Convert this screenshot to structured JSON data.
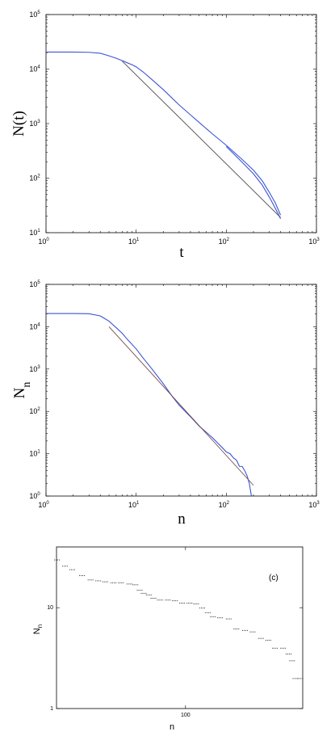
{
  "chart_data": [
    {
      "type": "line",
      "xlabel": "t",
      "ylabel": "N(t)",
      "xscale": "log",
      "yscale": "log",
      "xlim": [
        1,
        1000
      ],
      "ylim": [
        10,
        100000
      ],
      "x_ticks": [
        1,
        10,
        100,
        1000
      ],
      "y_ticks": [
        10,
        100,
        1000,
        10000,
        100000
      ],
      "series": [
        {
          "color": "#3a55d6",
          "x": [
            1,
            2,
            3,
            4,
            5,
            6,
            6.5,
            7,
            8,
            9,
            10,
            12,
            15,
            20,
            30,
            40,
            50,
            70,
            100,
            150,
            200,
            250,
            300,
            350,
            400
          ],
          "y": [
            20500,
            20500,
            20300,
            19500,
            17500,
            15800,
            15000,
            14300,
            13000,
            12000,
            11000,
            8800,
            6400,
            4200,
            2200,
            1450,
            1050,
            650,
            400,
            220,
            140,
            90,
            55,
            35,
            21
          ]
        },
        {
          "color": "#3a55d6",
          "x": [
            100,
            150,
            200,
            250,
            300,
            350,
            400
          ],
          "y": [
            380,
            195,
            120,
            75,
            45,
            28,
            18
          ]
        },
        {
          "color": "#4a4a4a",
          "x": [
            7,
            400
          ],
          "y": [
            14000,
            19
          ]
        }
      ]
    },
    {
      "type": "line",
      "xlabel": "n",
      "ylabel": "N",
      "ylabel_sub": "n",
      "xscale": "log",
      "yscale": "log",
      "xlim": [
        1,
        1000
      ],
      "ylim": [
        1,
        100000
      ],
      "x_ticks": [
        1,
        10,
        100,
        1000
      ],
      "y_ticks": [
        1,
        10,
        100,
        1000,
        10000,
        100000
      ],
      "series": [
        {
          "color": "#3a55d6",
          "x": [
            1,
            2,
            3,
            4,
            5,
            6,
            7,
            8,
            10,
            12,
            15,
            20,
            25,
            30,
            40,
            50,
            60,
            70,
            80,
            90,
            100,
            110,
            120,
            130,
            140,
            150,
            160,
            170,
            180,
            185,
            190
          ],
          "y": [
            20500,
            20500,
            20300,
            18000,
            13500,
            9500,
            7000,
            5000,
            3000,
            1800,
            1000,
            450,
            230,
            140,
            75,
            45,
            32,
            24,
            18,
            14,
            11,
            10,
            8,
            7,
            5,
            5,
            4,
            3,
            2,
            1.4,
            1
          ]
        },
        {
          "color": "#7a4a4a",
          "x": [
            5,
            200
          ],
          "y": [
            10000,
            1.8
          ]
        }
      ]
    },
    {
      "type": "scatter",
      "annotation": "(c)",
      "xlabel": "n",
      "ylabel": "N",
      "ylabel_sub": "n",
      "xscale": "log",
      "yscale": "log",
      "xlim": [
        17,
        500
      ],
      "ylim": [
        1,
        40
      ],
      "x_ticks": [
        100
      ],
      "y_ticks": [
        1,
        10
      ],
      "series": [
        {
          "color": "#000000",
          "points": [
            [
              17,
              30
            ],
            [
              19,
              26
            ],
            [
              21,
              24
            ],
            [
              24,
              21
            ],
            [
              27,
              19
            ],
            [
              30,
              18.6
            ],
            [
              33,
              18.2
            ],
            [
              37,
              17.8
            ],
            [
              41,
              17.8
            ],
            [
              46,
              17.3
            ],
            [
              50,
              17
            ],
            [
              53,
              15
            ],
            [
              56,
              14
            ],
            [
              60,
              13.5
            ],
            [
              64,
              12.5
            ],
            [
              70,
              12
            ],
            [
              78,
              12
            ],
            [
              86,
              11.8
            ],
            [
              95,
              11.2
            ],
            [
              105,
              11.2
            ],
            [
              115,
              11
            ],
            [
              125,
              10
            ],
            [
              135,
              9
            ],
            [
              145,
              8.2
            ],
            [
              160,
              8
            ],
            [
              180,
              7.8
            ],
            [
              200,
              6.2
            ],
            [
              225,
              6
            ],
            [
              250,
              5.8
            ],
            [
              280,
              5
            ],
            [
              310,
              4.8
            ],
            [
              340,
              4
            ],
            [
              380,
              4
            ],
            [
              410,
              3.5
            ],
            [
              430,
              3
            ],
            [
              450,
              2
            ],
            [
              480,
              2
            ]
          ]
        }
      ]
    }
  ]
}
